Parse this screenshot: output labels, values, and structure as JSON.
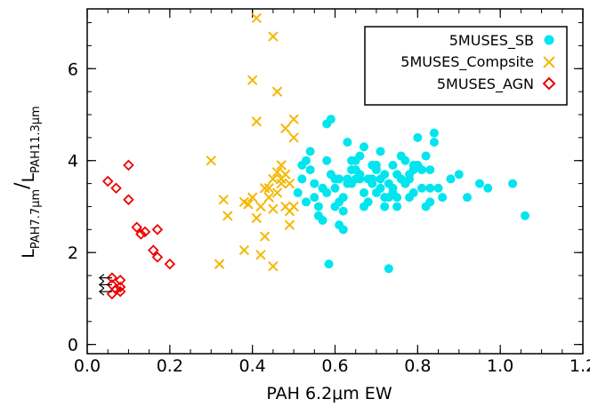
{
  "chart_data": {
    "type": "scatter",
    "xlabel": "PAH 6.2μm EW",
    "ylabel_main": "L",
    "ylabel_num_sub": "PAH7.7μm",
    "ylabel_den_sub": "PAH11.3μm",
    "xlim": [
      0.0,
      1.2
    ],
    "ylim": [
      -0.2,
      7.3
    ],
    "xticks": [
      0.0,
      0.2,
      0.4,
      0.6,
      0.8,
      1.0,
      1.2
    ],
    "xtick_labels": [
      "0.0",
      "0.2",
      "0.4",
      "0.6",
      "0.8",
      "1.0",
      "1.2"
    ],
    "yticks": [
      0,
      2,
      4,
      6
    ],
    "ytick_labels": [
      "0",
      "2",
      "4",
      "6"
    ],
    "legend_position": "top-right",
    "series": [
      {
        "name": "5MUSES_SB",
        "marker": "filled-circle",
        "color": "#00e5ee",
        "x": [
          0.51,
          0.52,
          0.53,
          0.54,
          0.55,
          0.56,
          0.57,
          0.58,
          0.585,
          0.59,
          0.6,
          0.61,
          0.62,
          0.63,
          0.64,
          0.65,
          0.66,
          0.67,
          0.68,
          0.69,
          0.7,
          0.71,
          0.72,
          0.73,
          0.74,
          0.75,
          0.76,
          0.77,
          0.78,
          0.79,
          0.8,
          0.81,
          0.82,
          0.83,
          0.84,
          0.86,
          0.88,
          0.9,
          0.92,
          0.95,
          0.97,
          1.03,
          1.06,
          0.52,
          0.55,
          0.57,
          0.59,
          0.61,
          0.63,
          0.65,
          0.67,
          0.69,
          0.71,
          0.73,
          0.75,
          0.77,
          0.79,
          0.81,
          0.83,
          0.6,
          0.62,
          0.64,
          0.66,
          0.68,
          0.7,
          0.72,
          0.74,
          0.76,
          0.78,
          0.8,
          0.53,
          0.56,
          0.58,
          0.62,
          0.66,
          0.7,
          0.74,
          0.78,
          0.82,
          0.57,
          0.63,
          0.69,
          0.75,
          0.54,
          0.61,
          0.67,
          0.73,
          0.79,
          0.85,
          0.58,
          0.64,
          0.71,
          0.77,
          0.83,
          0.6,
          0.65,
          0.72,
          0.84
        ],
        "y": [
          3.3,
          3.9,
          4.0,
          4.2,
          3.5,
          2.8,
          2.7,
          4.8,
          1.75,
          4.9,
          3.4,
          2.6,
          2.5,
          4.4,
          3.8,
          4.0,
          4.1,
          4.3,
          3.6,
          3.5,
          3.9,
          4.2,
          3.7,
          1.65,
          3.3,
          3.2,
          4.1,
          3.5,
          3.6,
          3.9,
          4.5,
          3.4,
          3.0,
          3.1,
          4.6,
          3.2,
          3.6,
          3.7,
          3.2,
          3.5,
          3.4,
          3.5,
          2.8,
          3.6,
          3.2,
          3.4,
          3.7,
          3.1,
          3.5,
          3.8,
          3.3,
          3.6,
          3.4,
          3.2,
          3.7,
          3.5,
          3.3,
          3.8,
          3.4,
          3.0,
          3.2,
          3.5,
          3.6,
          3.1,
          3.8,
          3.0,
          3.4,
          3.6,
          3.7,
          3.9,
          3.1,
          3.0,
          3.3,
          2.9,
          3.7,
          3.3,
          3.9,
          3.2,
          4.1,
          3.4,
          3.6,
          3.9,
          3.0,
          3.8,
          3.6,
          3.0,
          3.5,
          3.8,
          3.4,
          4.0,
          4.0,
          3.6,
          4.0,
          3.8,
          3.6,
          3.6,
          3.2,
          4.4
        ]
      },
      {
        "name": "5MUSES_Compsite",
        "marker": "x",
        "color": "#f5b800",
        "x": [
          0.41,
          0.45,
          0.4,
          0.46,
          0.41,
          0.5,
          0.48,
          0.5,
          0.47,
          0.48,
          0.3,
          0.47,
          0.49,
          0.45,
          0.43,
          0.46,
          0.44,
          0.4,
          0.38,
          0.42,
          0.45,
          0.48,
          0.5,
          0.49,
          0.33,
          0.39,
          0.41,
          0.49,
          0.34,
          0.43,
          0.38,
          0.42,
          0.45,
          0.32,
          0.47,
          0.46,
          0.44
        ],
        "y": [
          7.1,
          6.7,
          5.75,
          5.5,
          4.85,
          4.9,
          4.7,
          4.5,
          3.9,
          3.7,
          4.0,
          3.6,
          3.5,
          3.6,
          3.4,
          3.3,
          3.2,
          3.2,
          3.1,
          3.0,
          2.95,
          3.0,
          3.0,
          2.9,
          3.15,
          3.05,
          2.75,
          2.6,
          2.8,
          2.35,
          2.05,
          1.95,
          1.7,
          1.75,
          3.5,
          3.75,
          3.4
        ]
      },
      {
        "name": "5MUSES_AGN",
        "marker": "open-diamond",
        "color": "#ee0000",
        "x": [
          0.1,
          0.05,
          0.07,
          0.1,
          0.12,
          0.13,
          0.14,
          0.17,
          0.16,
          0.17,
          0.2,
          0.06,
          0.08,
          0.06,
          0.08,
          0.07,
          0.08,
          0.06
        ],
        "y": [
          3.9,
          3.55,
          3.4,
          3.15,
          2.55,
          2.4,
          2.45,
          2.5,
          2.05,
          1.9,
          1.75,
          1.45,
          1.4,
          1.3,
          1.25,
          1.2,
          1.15,
          1.1
        ]
      }
    ],
    "upper_limit_arrows": [
      {
        "x": 0.06,
        "y": 1.45
      },
      {
        "x": 0.06,
        "y": 1.3
      },
      {
        "x": 0.06,
        "y": 1.15
      }
    ]
  }
}
